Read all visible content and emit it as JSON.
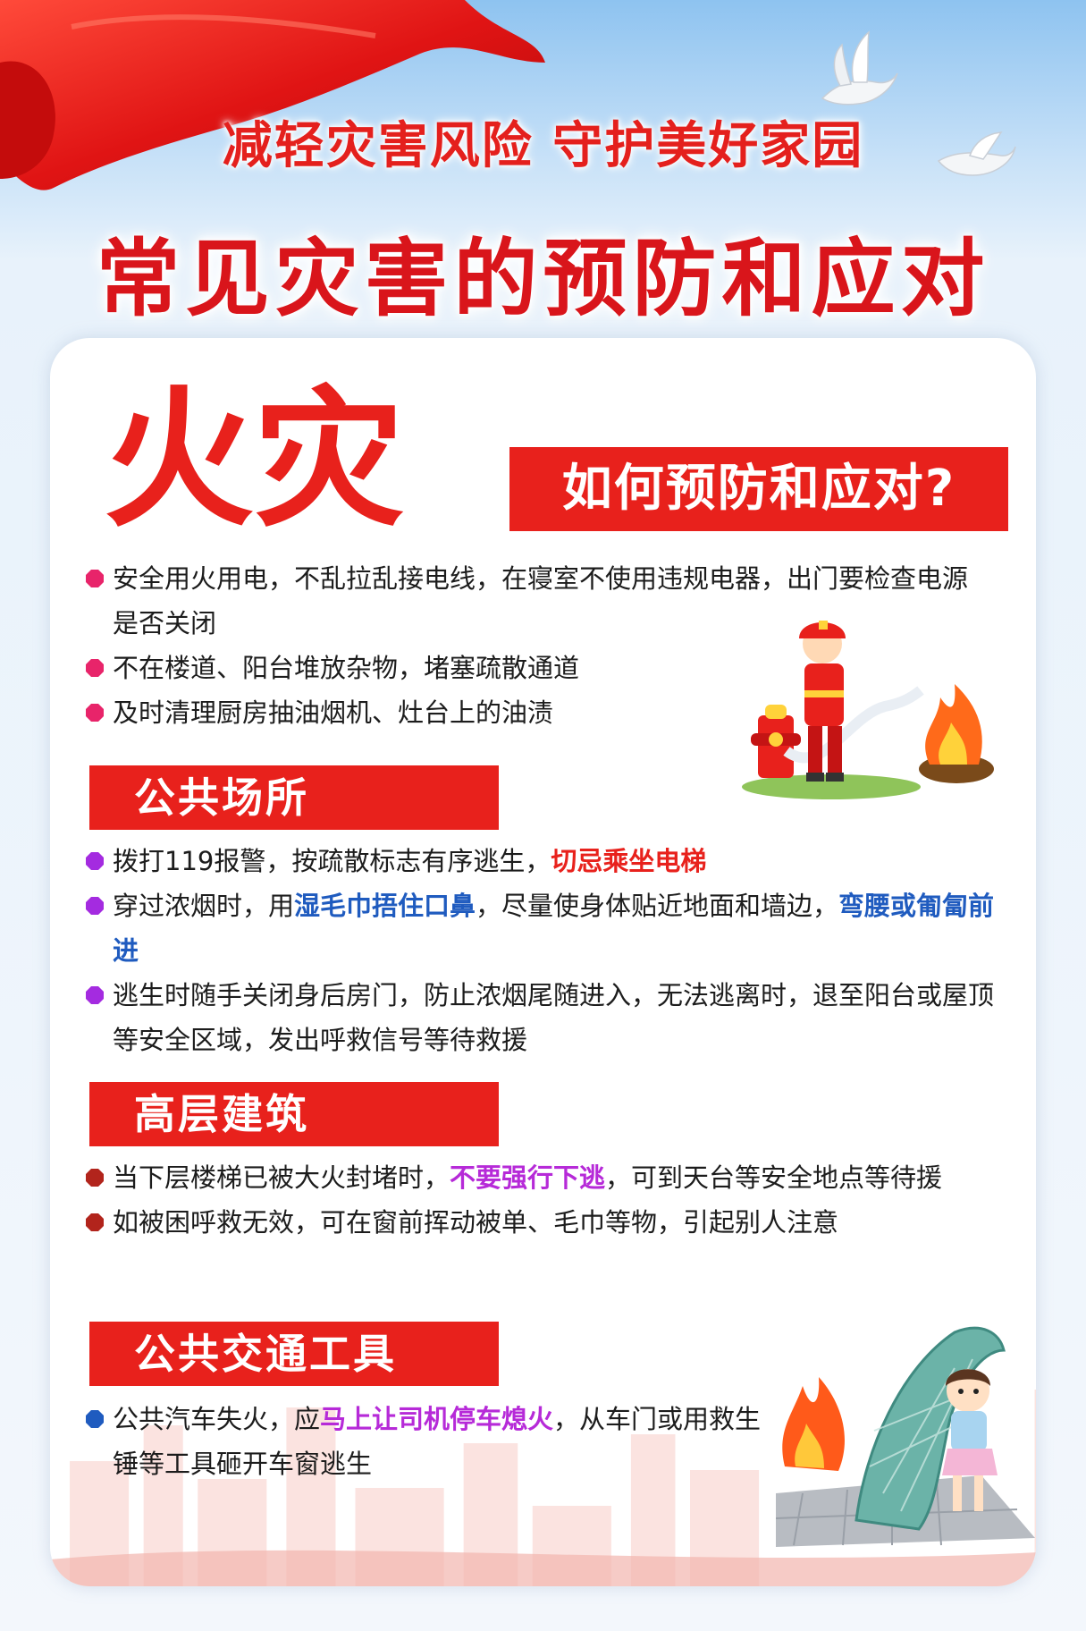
{
  "header": {
    "slogan": "减轻灾害风险 守护美好家园",
    "main_title": "常见灾害的预防和应对"
  },
  "fire": {
    "title": "火灾",
    "question": "如何预防和应对?"
  },
  "intro_bullets": [
    {
      "text": "安全用火用电，不乱拉乱接电线，在寝室不使用违规电器，出门要检查电源是否关闭"
    },
    {
      "text": "不在楼道、阳台堆放杂物，堵塞疏散通道"
    },
    {
      "text": "及时清理厨房抽油烟机、灶台上的油渍"
    }
  ],
  "sections": [
    {
      "title": "公共场所",
      "bullets": [
        {
          "parts": [
            {
              "t": "拨打119报警，按疏散标志有序逃生，"
            },
            {
              "t": "切忌乘坐电梯",
              "hl": "red"
            }
          ]
        },
        {
          "parts": [
            {
              "t": "穿过浓烟时，用"
            },
            {
              "t": "湿毛巾捂住口鼻",
              "hl": "blue"
            },
            {
              "t": "，尽量使身体贴近地面和墙边，"
            },
            {
              "t": "弯腰或匍匐前进",
              "hl": "blue"
            }
          ]
        },
        {
          "parts": [
            {
              "t": "逃生时随手关闭身后房门，防止浓烟尾随进入，无法逃离时，退至阳台或屋顶等安全区域，发出呼救信号等待救援"
            }
          ]
        }
      ]
    },
    {
      "title": "高层建筑",
      "bullets": [
        {
          "parts": [
            {
              "t": "当下层楼梯已被大火封堵时，"
            },
            {
              "t": "不要强行下逃",
              "hl": "purple"
            },
            {
              "t": "，可到天台等安全地点等待援"
            }
          ]
        },
        {
          "parts": [
            {
              "t": "如被困呼救无效，可在窗前挥动被单、毛巾等物，引起别人注意"
            }
          ]
        }
      ]
    },
    {
      "title": "公共交通工具",
      "bullets": [
        {
          "parts": [
            {
              "t": "公共汽车失火，应"
            },
            {
              "t": "马上让司机停车熄火",
              "hl": "purple"
            },
            {
              "t": "，从车门或用救生锤等工具砸开车窗逃生"
            }
          ]
        }
      ]
    }
  ],
  "colors": {
    "accent_red": "#e8211c",
    "dot_intro": "#e8246a",
    "dot_public": "#a42be0",
    "dot_highrise": "#b2241c",
    "dot_transport": "#1f5bbf"
  },
  "icons": [
    "flag-ribbon-icon",
    "dove-icon",
    "firefighter-illustration",
    "fire-icon",
    "hydrant-icon",
    "child-escape-illustration",
    "city-skyline-icon"
  ]
}
